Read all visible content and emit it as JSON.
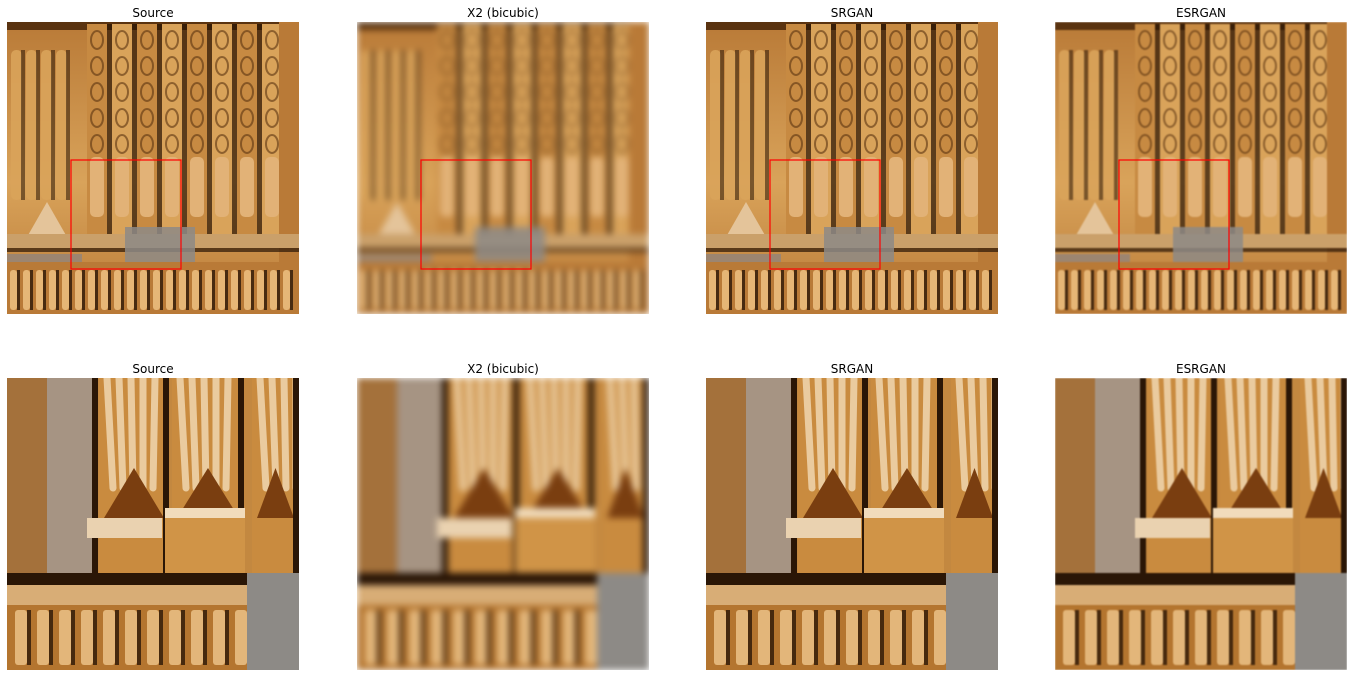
{
  "figure": {
    "rows": [
      {
        "kind": "full view",
        "panels": [
          {
            "title": "Source",
            "variant": "sharp",
            "zoom_box": true
          },
          {
            "title": "X2 (bicubic)",
            "variant": "blurry",
            "zoom_box": true
          },
          {
            "title": "SRGAN",
            "variant": "sharp",
            "zoom_box": true
          },
          {
            "title": "ESRGAN",
            "variant": "soft",
            "zoom_box": true
          }
        ]
      },
      {
        "kind": "zoomed crop",
        "panels": [
          {
            "title": "Source",
            "variant": "sharp",
            "zoom_box": false
          },
          {
            "title": "X2 (bicubic)",
            "variant": "blurry",
            "zoom_box": false
          },
          {
            "title": "SRGAN",
            "variant": "sharp",
            "zoom_box": false
          },
          {
            "title": "ESRGAN",
            "variant": "soft",
            "zoom_box": false
          }
        ]
      }
    ],
    "colors": {
      "stone_light": "#d9a35a",
      "stone_mid": "#b97a37",
      "stone_dark": "#5a3310",
      "shadow": "#2a1606",
      "grey_stone": "#8d8a86",
      "zoom_box": "#ff0000",
      "background": "#ffffff"
    }
  }
}
